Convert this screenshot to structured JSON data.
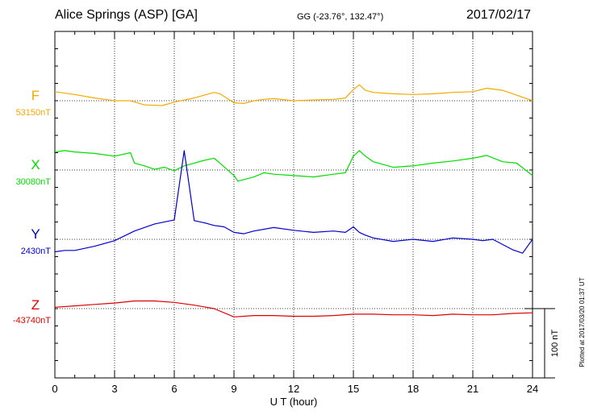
{
  "header": {
    "station": "Alice Springs (ASP)  [GA]",
    "coords": "GG (-23.76°, 132.47°)",
    "date": "2017/02/17"
  },
  "footer": {
    "plotted": "Plotted at 2017/03/20 01:37 UT"
  },
  "scale_label": "100 nT",
  "chart_data": {
    "type": "line",
    "title": "Alice Springs (ASP)  [GA]",
    "xlabel": "U T (hour)",
    "ylabel": "",
    "xlim": [
      0,
      24
    ],
    "x_ticks": [
      "0",
      "3",
      "6",
      "9",
      "12",
      "15",
      "18",
      "21",
      "24"
    ],
    "grid": true,
    "scale_bar_nT": 100,
    "series": [
      {
        "name": "F",
        "baseline_label": "53150nT",
        "color": "#f5a800",
        "baseline": 53150,
        "x": [
          0,
          1,
          2,
          3,
          3.8,
          4.5,
          5.4,
          6,
          7,
          7.5,
          8,
          8.3,
          9,
          9.5,
          10,
          10.5,
          11,
          12,
          13,
          14,
          14.6,
          15,
          15.3,
          15.6,
          16,
          17,
          18,
          19,
          20,
          21,
          21.7,
          22.5,
          23.2,
          24
        ],
        "y": [
          53163,
          53159,
          53154,
          53150,
          53150,
          53144,
          53143,
          53148,
          53154,
          53158,
          53162,
          53160,
          53147,
          53146,
          53150,
          53152,
          53153,
          53150,
          53151,
          53152,
          53154,
          53166,
          53173,
          53165,
          53162,
          53160,
          53159,
          53160,
          53162,
          53163,
          53168,
          53165,
          53158,
          53150
        ]
      },
      {
        "name": "X",
        "baseline_label": "30080nT",
        "color": "#00dd00",
        "baseline": 30080,
        "x": [
          0,
          0.5,
          1,
          2,
          3,
          3.8,
          4,
          4.5,
          5,
          5.5,
          6,
          6.5,
          7,
          7.5,
          8,
          8.3,
          9,
          9.2,
          10,
          10.5,
          11,
          12,
          13,
          14,
          14.6,
          15,
          15.3,
          15.6,
          16,
          17,
          18,
          19,
          20,
          21,
          21.7,
          22.5,
          23.2,
          24
        ],
        "y": [
          30106,
          30108,
          30106,
          30104,
          30100,
          30105,
          30090,
          30086,
          30081,
          30084,
          30079,
          30086,
          30090,
          30094,
          30097,
          30090,
          30072,
          30064,
          30070,
          30076,
          30074,
          30072,
          30070,
          30074,
          30076,
          30100,
          30108,
          30100,
          30092,
          30084,
          30086,
          30090,
          30093,
          30097,
          30101,
          30092,
          30090,
          30072
        ]
      },
      {
        "name": "Y",
        "baseline_label": "2430nT",
        "color": "#0000cc",
        "baseline": 2430,
        "x": [
          0,
          0.5,
          1,
          2,
          3,
          4,
          5,
          6,
          6.5,
          7,
          7.5,
          8,
          8.5,
          9,
          9.5,
          10,
          11,
          12,
          13,
          14,
          14.6,
          15,
          15.3,
          15.6,
          16,
          17,
          18,
          19,
          20,
          21,
          21.5,
          22,
          23,
          23.5,
          24
        ],
        "y": [
          2412,
          2414,
          2414,
          2420,
          2428,
          2442,
          2452,
          2458,
          2558,
          2457,
          2454,
          2450,
          2448,
          2440,
          2438,
          2442,
          2447,
          2443,
          2440,
          2442,
          2440,
          2448,
          2440,
          2436,
          2432,
          2427,
          2430,
          2427,
          2432,
          2430,
          2428,
          2430,
          2415,
          2410,
          2430
        ]
      },
      {
        "name": "Z",
        "baseline_label": "-43740nT",
        "color": "#dd0000",
        "baseline": -43740,
        "x": [
          0,
          1,
          2,
          3,
          4,
          5,
          6,
          7,
          8,
          9,
          10,
          11,
          12,
          13,
          14,
          15,
          16,
          17,
          18,
          19,
          20,
          21,
          22,
          23,
          24
        ],
        "y": [
          -43738,
          -43736,
          -43734,
          -43732,
          -43729,
          -43729,
          -43731,
          -43735,
          -43740,
          -43752,
          -43750,
          -43750,
          -43751,
          -43751,
          -43750,
          -43748,
          -43748,
          -43749,
          -43749,
          -43750,
          -43748,
          -43749,
          -43749,
          -43747,
          -43746
        ]
      }
    ]
  }
}
